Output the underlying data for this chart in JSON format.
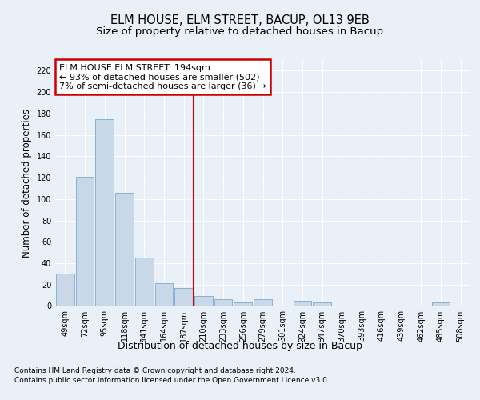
{
  "title": "ELM HOUSE, ELM STREET, BACUP, OL13 9EB",
  "subtitle": "Size of property relative to detached houses in Bacup",
  "xlabel": "Distribution of detached houses by size in Bacup",
  "ylabel": "Number of detached properties",
  "bin_labels": [
    "49sqm",
    "72sqm",
    "95sqm",
    "118sqm",
    "141sqm",
    "164sqm",
    "187sqm",
    "210sqm",
    "233sqm",
    "256sqm",
    "279sqm",
    "301sqm",
    "324sqm",
    "347sqm",
    "370sqm",
    "393sqm",
    "416sqm",
    "439sqm",
    "462sqm",
    "485sqm",
    "508sqm"
  ],
  "bar_values": [
    30,
    121,
    175,
    106,
    45,
    21,
    17,
    9,
    6,
    3,
    6,
    0,
    5,
    3,
    0,
    0,
    0,
    0,
    0,
    3,
    0
  ],
  "bar_color": "#c8d8e8",
  "bar_edgecolor": "#7aaac8",
  "vline_x": 6.5,
  "vline_color": "#cc0000",
  "annotation_line1": "ELM HOUSE ELM STREET: 194sqm",
  "annotation_line2": "← 93% of detached houses are smaller (502)",
  "annotation_line3": "7% of semi-detached houses are larger (36) →",
  "annotation_box_color": "#cc0000",
  "ylim": [
    0,
    230
  ],
  "yticks": [
    0,
    20,
    40,
    60,
    80,
    100,
    120,
    140,
    160,
    180,
    200,
    220
  ],
  "footer1": "Contains HM Land Registry data © Crown copyright and database right 2024.",
  "footer2": "Contains public sector information licensed under the Open Government Licence v3.0.",
  "bg_color": "#eaf0f8",
  "plot_bg_color": "#eaf0f8",
  "grid_color": "#ffffff",
  "title_fontsize": 10.5,
  "subtitle_fontsize": 9.5,
  "ylabel_fontsize": 8.5,
  "xlabel_fontsize": 9,
  "tick_fontsize": 7,
  "annotation_fontsize": 8,
  "footer_fontsize": 6.5
}
